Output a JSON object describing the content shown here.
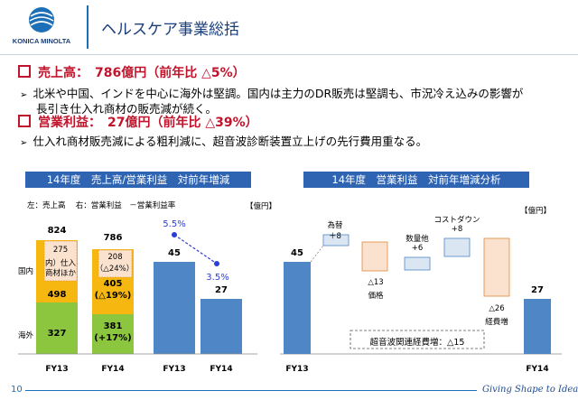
{
  "logo": {
    "text": "KONICA MINOLTA"
  },
  "header": {
    "title": "ヘルスケア事業総括"
  },
  "summary": {
    "sales_head": "売上高：　786億円（前年比 △5%）",
    "sales_line1": "北米や中国、インドを中心に海外は堅調。国内は主力のDR販売は堅調も、市況冷え込みの影響が",
    "sales_line2": "長引き仕入れ商材の販売減が続く。",
    "profit_head": "営業利益：　27億円（前年比 △39%）",
    "profit_line1": "仕入れ商材販売減による粗利減に、超音波診断装置立上げの先行費用重なる。"
  },
  "left_panel": {
    "header": "14年度　売上高/営業利益　対前年増減",
    "legend": "左：売上高　 右：営業利益　－営業利益率",
    "unit": "【億円】",
    "row_domestic": "国内",
    "row_overseas": "海外",
    "fy13_total": "824",
    "fy13_inner1": "275",
    "fy13_inner2": "内）仕入",
    "fy13_inner3": "商材ほか",
    "fy13_domestic": "498",
    "fy13_overseas": "327",
    "fy14_total": "786",
    "fy14_inner1": "208",
    "fy14_inner2": "（△24%）",
    "fy14_domestic1": "405",
    "fy14_domestic2": "(△19%)",
    "fy14_overseas1": "381",
    "fy14_overseas2": "(+17%)",
    "op_fy13": "45",
    "op_fy14": "27",
    "rate_fy13": "5.5%",
    "rate_fy14": "3.5%",
    "x_fy13_a": "FY13",
    "x_fy14_a": "FY14",
    "x_fy13_b": "FY13",
    "x_fy14_b": "FY14"
  },
  "right_panel": {
    "header": "14年度　営業利益　対前年増減分析",
    "unit": "【億円】",
    "start_value": "45",
    "fx_label": "為替",
    "fx_value": "＋8",
    "qty_label": "数量他",
    "qty_value": "+6",
    "cost_label": "コストダウン",
    "cost_value": "+8",
    "price_value": "△13",
    "price_label": "価格",
    "exp_value": "△26",
    "exp_label": "経費増",
    "end_value": "27",
    "note": "超音波関連経費増：△15",
    "x_start": "FY13",
    "x_end": "FY14"
  },
  "footer": {
    "page": "10",
    "slogan": "Giving Shape to Ideas"
  },
  "colors": {
    "brand_blue": "#2f64b3",
    "bar_blue": "#4f86c6",
    "orange": "#f6b810",
    "green": "#8cc63e",
    "red": "#c0142d",
    "neg_fill": "#fbe2cf",
    "pos_fill": "#dbe6f3"
  }
}
